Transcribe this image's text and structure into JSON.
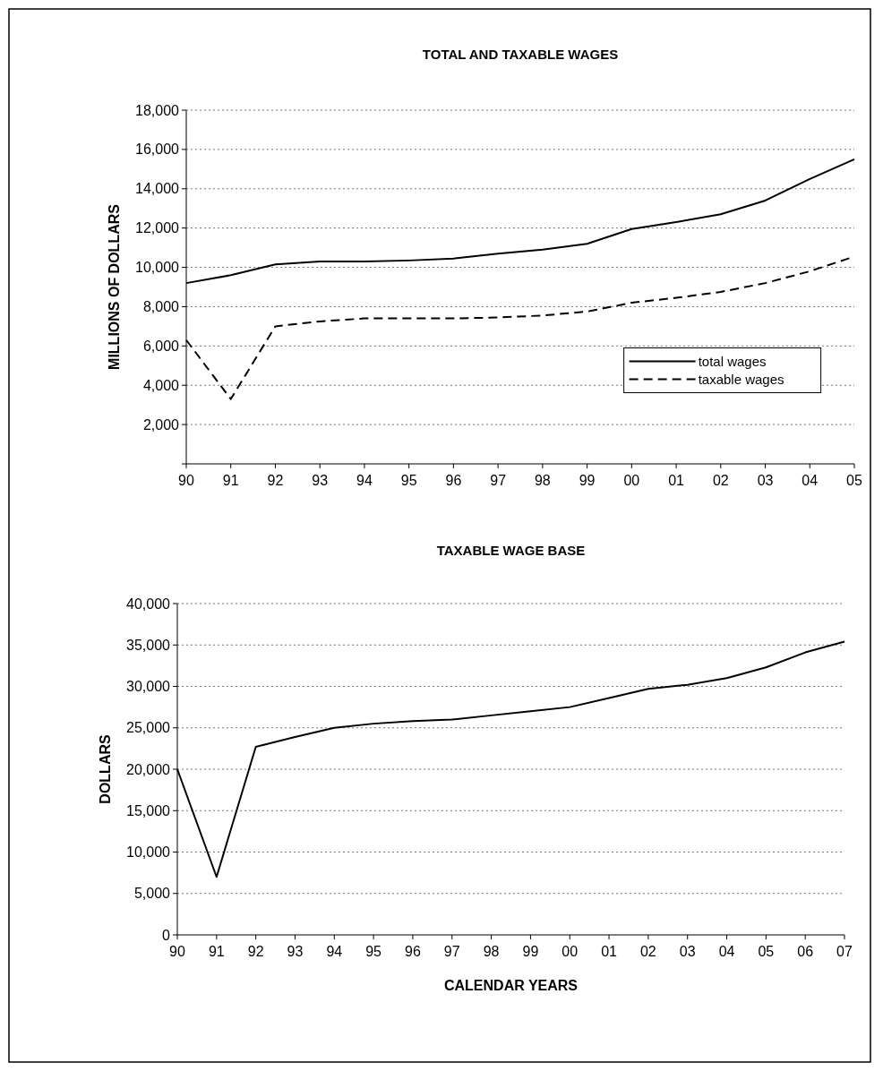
{
  "chart_data": [
    {
      "type": "line",
      "title": "TOTAL AND TAXABLE WAGES",
      "ylabel": "MILLIONS OF DOLLARS",
      "categories": [
        "90",
        "91",
        "92",
        "93",
        "94",
        "95",
        "96",
        "97",
        "98",
        "99",
        "00",
        "01",
        "02",
        "03",
        "04",
        "05"
      ],
      "series": [
        {
          "name": "total wages",
          "color": "#000000",
          "line_style": "solid",
          "values": [
            9200,
            9600,
            10150,
            10300,
            10300,
            10350,
            10450,
            10700,
            10900,
            11200,
            11950,
            12300,
            12700,
            13400,
            14500,
            15500
          ]
        },
        {
          "name": "taxable wages",
          "color": "#000000",
          "line_style": "dashed",
          "values": [
            6300,
            3300,
            7000,
            7250,
            7400,
            7400,
            7400,
            7450,
            7550,
            7750,
            8200,
            8450,
            8750,
            9200,
            9800,
            10550
          ]
        }
      ],
      "ylim": [
        0,
        18000
      ],
      "yticks": [
        {
          "value": 0,
          "label": null
        },
        {
          "value": 2000,
          "label": "2,000"
        },
        {
          "value": 4000,
          "label": "4,000"
        },
        {
          "value": 6000,
          "label": "6,000"
        },
        {
          "value": 8000,
          "label": "8,000"
        },
        {
          "value": 10000,
          "label": "10,000"
        },
        {
          "value": 12000,
          "label": "12,000"
        },
        {
          "value": 14000,
          "label": "14,000"
        },
        {
          "value": 16000,
          "label": "16,000"
        },
        {
          "value": 18000,
          "label": "18,000"
        }
      ],
      "grid": "y",
      "legend": "right",
      "marker": "none"
    },
    {
      "type": "line",
      "title": "TAXABLE WAGE BASE",
      "xlabel": "CALENDAR YEARS",
      "ylabel": "DOLLARS",
      "categories": [
        "90",
        "91",
        "92",
        "93",
        "94",
        "95",
        "96",
        "97",
        "98",
        "99",
        "00",
        "01",
        "02",
        "03",
        "04",
        "05",
        "06",
        "07"
      ],
      "series": [
        {
          "color": "#000000",
          "line_style": "solid",
          "values": [
            20000,
            7000,
            22700,
            23900,
            25000,
            25500,
            25800,
            26000,
            26500,
            27000,
            27500,
            28600,
            29700,
            30200,
            31000,
            32300,
            34100,
            35400
          ]
        }
      ],
      "ylim": [
        0,
        40000
      ],
      "yticks": [
        0,
        {
          "value": 5000,
          "label": "5,000"
        },
        {
          "value": 10000,
          "label": "10,000"
        },
        {
          "value": 15000,
          "label": "15,000"
        },
        {
          "value": 20000,
          "label": "20,000"
        },
        {
          "value": 25000,
          "label": "25,000"
        },
        {
          "value": 30000,
          "label": "30,000"
        },
        {
          "value": 35000,
          "label": "35,000"
        },
        {
          "value": 40000,
          "label": "40,000"
        }
      ],
      "grid": "y",
      "legend": false,
      "marker": "none"
    }
  ]
}
